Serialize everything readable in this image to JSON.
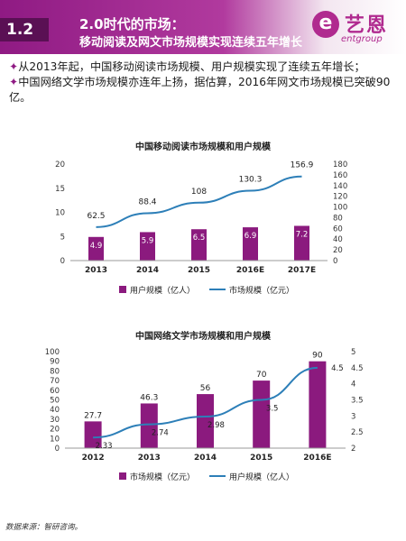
{
  "header": {
    "section": "1.2",
    "title_line1": "2.0时代的市场：",
    "title_line2": "移动阅读及网文市场规模实现连续五年增长",
    "logo_cn": "艺恩",
    "logo_en": "entgroup",
    "logo_mark": "e",
    "brand_color": "#8f1a83"
  },
  "bullets": [
    {
      "marker": "✦",
      "text": "从2013年起，中国移动阅读市场规模、用户规模实现了连续五年增长；"
    },
    {
      "marker": "✦",
      "text": "中国网络文学市场规模亦连年上扬，据估算，2016年网文市场规模已突破90亿。"
    }
  ],
  "chart_data": [
    {
      "type": "bar",
      "title": "中国移动阅读市场规模和用户规模",
      "categories": [
        "2013",
        "2014",
        "2015",
        "2016E",
        "2017E"
      ],
      "series": [
        {
          "name": "用户规模（亿人）",
          "kind": "bar",
          "axis": "left",
          "color": "#8b1a7e",
          "values": [
            4.9,
            5.9,
            6.5,
            6.9,
            7.2
          ]
        },
        {
          "name": "市场规模（亿元）",
          "kind": "line",
          "axis": "right",
          "color": "#2d7fb8",
          "values": [
            62.5,
            88.4,
            108,
            130.3,
            156.9
          ]
        }
      ],
      "left_axis": {
        "min": 0,
        "max": 20,
        "ticks": [
          0,
          5,
          10,
          15,
          20
        ]
      },
      "right_axis": {
        "min": 0,
        "max": 180,
        "ticks": [
          0,
          20,
          40,
          60,
          80,
          100,
          120,
          140,
          160,
          180
        ]
      },
      "legend_position": "bottom",
      "grid": false
    },
    {
      "type": "bar",
      "title": "中国网络文学市场规模和用户规模",
      "categories": [
        "2012",
        "2013",
        "2014",
        "2015",
        "2016E"
      ],
      "series": [
        {
          "name": "市场规模（亿元）",
          "kind": "bar",
          "axis": "left",
          "color": "#8b1a7e",
          "values": [
            27.7,
            46.3,
            56,
            70,
            90
          ]
        },
        {
          "name": "用户规模（亿人）",
          "kind": "line",
          "axis": "right",
          "color": "#2d7fb8",
          "values": [
            2.33,
            2.74,
            2.98,
            3.5,
            4.5
          ]
        }
      ],
      "left_axis": {
        "min": 0,
        "max": 100,
        "ticks": [
          0,
          10,
          20,
          30,
          40,
          50,
          60,
          70,
          80,
          90,
          100
        ]
      },
      "right_axis": {
        "min": 2,
        "max": 5,
        "ticks": [
          2,
          2.5,
          3,
          3.5,
          4,
          4.5,
          5
        ]
      },
      "legend_position": "bottom",
      "grid": false
    }
  ],
  "footer": {
    "source": "数据来源：智研咨询。"
  }
}
